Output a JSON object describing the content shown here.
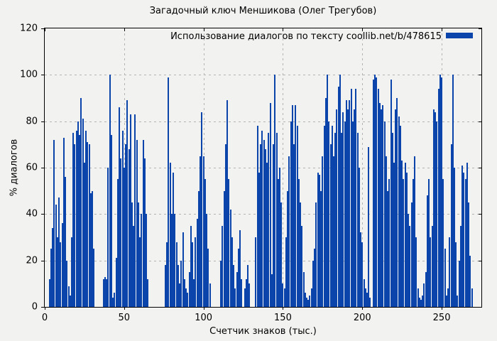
{
  "title": "Загадочный ключ Меншикова (Олег Трегубов)",
  "legend": {
    "label": "Использование диалогов по тексту  coollib.net/b/478615",
    "swatch": "blue-box"
  },
  "colors": {
    "bar": "#0b45ac",
    "background": "#f2f2f1",
    "grid": "#b4b4b4",
    "border": "#000000",
    "text": "#000000"
  },
  "chart_data": {
    "type": "bar",
    "title": "Загадочный ключ Меншикова (Олег Трегубов)",
    "xlabel": "Счетчик знаков (тыс.)",
    "ylabel": "% диалогов",
    "legend_entry": "Использование диалогов по тексту  coollib.net/b/478615",
    "legend_position": "top-right",
    "grid": true,
    "xlim": [
      0,
      275
    ],
    "ylim": [
      0,
      120
    ],
    "xticks": [
      0,
      50,
      100,
      150,
      200,
      250
    ],
    "yticks": [
      0,
      20,
      40,
      60,
      80,
      100,
      120
    ],
    "x_start": 0,
    "x_step": 1,
    "values": [
      0,
      0,
      0,
      12,
      25,
      34,
      72,
      44,
      30,
      47,
      28,
      36,
      73,
      56,
      20,
      9,
      5,
      30,
      75,
      70,
      76,
      80,
      74,
      90,
      81,
      62,
      76,
      71,
      70,
      49,
      50,
      25,
      0,
      0,
      0,
      0,
      0,
      12,
      13,
      12,
      60,
      100,
      74,
      4,
      6,
      21,
      55,
      86,
      64,
      76,
      60,
      70,
      89,
      68,
      83,
      45,
      35,
      83,
      72,
      45,
      30,
      40,
      72,
      64,
      40,
      12,
      0,
      0,
      0,
      0,
      0,
      0,
      0,
      0,
      0,
      0,
      18,
      28,
      99,
      62,
      40,
      58,
      40,
      28,
      18,
      10,
      20,
      32,
      12,
      8,
      6,
      15,
      35,
      28,
      12,
      30,
      38,
      50,
      65,
      84,
      65,
      55,
      40,
      25,
      10,
      0,
      0,
      0,
      0,
      0,
      0,
      20,
      35,
      50,
      70,
      89,
      55,
      42,
      30,
      18,
      8,
      15,
      25,
      33,
      12,
      0,
      8,
      12,
      18,
      10,
      0,
      0,
      0,
      30,
      78,
      58,
      70,
      76,
      72,
      68,
      62,
      75,
      88,
      14,
      70,
      100,
      75,
      55,
      60,
      45,
      10,
      8,
      30,
      50,
      65,
      80,
      87,
      70,
      87,
      78,
      55,
      45,
      35,
      15,
      6,
      4,
      3,
      5,
      8,
      20,
      25,
      45,
      58,
      57,
      50,
      65,
      78,
      90,
      100,
      80,
      70,
      78,
      65,
      75,
      85,
      95,
      100,
      75,
      84,
      80,
      89,
      85,
      89,
      94,
      80,
      85,
      94,
      75,
      60,
      32,
      28,
      12,
      8,
      6,
      69,
      4,
      0,
      98,
      100,
      99,
      94,
      88,
      85,
      87,
      80,
      65,
      50,
      55,
      98,
      75,
      62,
      85,
      90,
      82,
      78,
      63,
      55,
      62,
      58,
      40,
      35,
      45,
      55,
      65,
      30,
      8,
      4,
      3,
      5,
      10,
      15,
      48,
      55,
      30,
      35,
      85,
      84,
      80,
      94,
      100,
      99,
      55,
      25,
      5,
      8,
      30,
      70,
      100,
      60,
      28,
      5,
      20,
      35,
      61,
      58,
      55,
      62,
      45,
      22,
      8,
      0
    ]
  }
}
